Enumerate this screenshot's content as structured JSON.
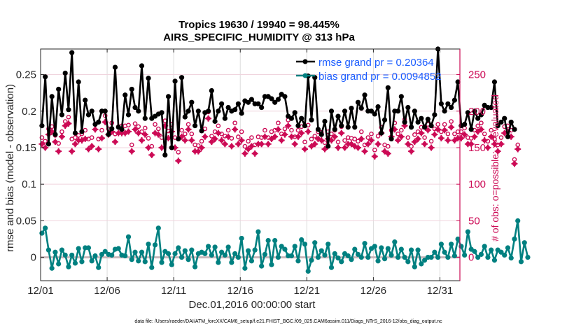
{
  "chart_data": {
    "type": "line",
    "title": "Tropics 19630 / 19940 = 98.445%",
    "subtitle": "AIRS_SPECIFIC_HUMIDITY @ 313 hPa",
    "xlabel": "Dec.01,2016 00:00:00 start",
    "ylabel": "rmse and bias (model - observation)",
    "y2label": "# of obs: o=possible; ×=evaluated",
    "footer": "data file: /Users/raeder/DAI/ATM_forcXX/CAM6_setup/f.e21.FHIST_BGC.f09_025.CAM6assim.011/Diags_NTrS_2016-12/obs_diag_output.nc",
    "xticks": [
      "12/01",
      "12/06",
      "12/11",
      "12/16",
      "12/21",
      "12/26",
      "12/31"
    ],
    "yticks": [
      "0",
      "0.05",
      "0.1",
      "0.15",
      "0.2",
      "0.25"
    ],
    "y2ticks": [
      "0",
      "50",
      "100",
      "150",
      "200",
      "250"
    ],
    "xlim_days": [
      0,
      31.5
    ],
    "ylim": [
      -0.032,
      0.285
    ],
    "y2lim": [
      -32,
      285
    ],
    "grid": true,
    "legend_position": "top-right",
    "legend": [
      {
        "label": "rmse grand pr = 0.20364",
        "color": "#000000"
      },
      {
        "label": "bias grand pr = 0.0094852",
        "color": "#008080"
      }
    ],
    "colors": {
      "rmse": "#000000",
      "bias": "#008080",
      "obs": "#cc0a55",
      "zero_line": "#c8b8bc",
      "legend_text": "#1a5cff"
    },
    "time_step_days": 0.25,
    "series": [
      {
        "name": "rmse",
        "values": [
          0.18,
          0.247,
          0.155,
          0.22,
          0.168,
          0.23,
          0.195,
          0.252,
          0.202,
          0.28,
          0.17,
          0.24,
          0.172,
          0.215,
          0.195,
          0.2,
          0.182,
          0.185,
          0.2,
          0.2,
          0.168,
          0.176,
          0.26,
          0.178,
          0.175,
          0.222,
          0.195,
          0.23,
          0.205,
          0.2,
          0.262,
          0.19,
          0.245,
          0.19,
          0.193,
          0.196,
          0.198,
          0.14,
          0.22,
          0.15,
          0.241,
          0.162,
          0.246,
          0.192,
          0.2,
          0.212,
          0.18,
          0.2,
          0.173,
          0.198,
          0.2,
          0.228,
          0.186,
          0.2,
          0.21,
          0.19,
          0.205,
          0.2,
          0.202,
          0.21,
          0.197,
          0.214,
          0.212,
          0.216,
          0.21,
          0.21,
          0.205,
          0.22,
          0.22,
          0.217,
          0.212,
          0.216,
          0.223,
          0.22,
          0.193,
          0.19,
          0.198,
          0.18,
          0.19,
          0.18,
          0.248,
          0.188,
          0.246,
          0.175,
          0.168,
          0.186,
          0.152,
          0.2,
          0.175,
          0.193,
          0.18,
          0.2,
          0.178,
          0.204,
          0.178,
          0.212,
          0.204,
          0.222,
          0.2,
          0.2,
          0.196,
          0.206,
          0.17,
          0.188,
          0.232,
          0.162,
          0.2,
          0.2,
          0.22,
          0.185,
          0.205,
          0.178,
          0.2,
          0.185,
          0.19,
          0.178,
          0.189,
          0.18,
          0.195,
          0.285,
          0.21,
          0.2,
          0.21,
          0.205,
          0.215,
          0.24,
          0.18,
          0.182,
          0.198,
          0.175,
          0.2,
          0.19,
          0.195,
          0.208,
          0.205,
          0.205,
          0.24,
          0.18,
          0.185,
          0.19,
          0.165,
          0.185,
          0.175
        ]
      },
      {
        "name": "bias",
        "values": [
          0.033,
          0.04,
          0.01,
          -0.015,
          0.007,
          -0.009,
          0.01,
          0.003,
          -0.013,
          0.003,
          -0.008,
          0.012,
          -0.006,
          0.013,
          0.013,
          -0.005,
          0.002,
          -0.014,
          0.004,
          0.008,
          0.004,
          0.003,
          0.011,
          0.012,
          0.003,
          0.002,
          0.028,
          -0.003,
          0.007,
          -0.005,
          0.007,
          -0.006,
          0.018,
          -0.014,
          0.017,
          0.04,
          -0.007,
          0.008,
          0.005,
          -0.01,
          0.005,
          0.013,
          0.0,
          0.009,
          -0.003,
          0.01,
          -0.013,
          0.005,
          0.007,
          0.005,
          0.015,
          0.003,
          0.014,
          -0.007,
          0.007,
          0.003,
          0.014,
          -0.007,
          0.005,
          0.0,
          0.026,
          -0.015,
          0.009,
          -0.005,
          0.01,
          0.035,
          -0.012,
          0.004,
          0.023,
          -0.01,
          0.023,
          0.0,
          0.015,
          0.011,
          0.002,
          0.002,
          0.015,
          -0.005,
          0.024,
          0.018,
          -0.019,
          -0.004,
          0.02,
          0.0,
          0.009,
          0.003,
          0.018,
          -0.014,
          0.005,
          -0.001,
          -0.006,
          0.005,
          0.002,
          -0.003,
          0.011,
          0.004,
          0.0,
          0.019,
          0.0,
          0.012,
          0.015,
          -0.005,
          0.013,
          -0.002,
          0.012,
          0.003,
          0.021,
          0.0,
          0.011,
          0.0,
          -0.006,
          0.01,
          -0.013,
          0.01,
          -0.009,
          -0.004,
          0.0,
          0.0,
          0.007,
          0.0,
          0.018,
          0.007,
          0.0,
          0.018,
          0.002,
          0.025,
          0.015,
          0.003,
          0.035,
          0.011,
          0.008,
          0.0,
          0.004,
          0.015,
          0.0,
          0.01,
          -0.004,
          0.01,
          0.007,
          0.003,
          0.013,
          -0.001,
          0.025,
          0.05,
          -0.006,
          0.02,
          0.0
        ]
      },
      {
        "name": "obs_possible",
        "values": [
          160,
          155,
          172,
          175,
          163,
          152,
          168,
          182,
          188,
          158,
          160,
          163,
          165,
          170,
          158,
          160,
          178,
          158,
          170,
          190,
          172,
          180,
          165,
          175,
          176,
          176,
          177,
          150,
          179,
          175,
          168,
          173,
          159,
          148,
          178,
          172,
          160,
          183,
          169,
          178,
          160,
          140,
          170,
          165,
          178,
          165,
          150,
          149,
          155,
          172,
          195,
          162,
          168,
          176,
          165,
          162,
          170,
          159,
          180,
          161,
          168,
          148,
          155,
          160,
          150,
          161,
          160,
          170,
          160,
          168,
          170,
          180,
          165,
          172,
          184,
          170,
          161,
          170,
          175,
          154,
          177,
          158,
          162,
          168,
          167,
          153,
          168,
          165,
          170,
          154,
          175,
          156,
          160,
          159,
          158,
          155,
          168,
          150,
          160,
          165,
          143,
          162,
          174,
          150,
          148,
          170,
          180,
          165,
          170,
          185,
          160,
          148,
          164,
          168,
          174,
          160,
          178,
          155,
          172,
          178,
          168,
          178,
          165,
          182,
          165,
          168,
          168,
          173,
          160,
          159,
          170,
          176,
          180,
          165,
          155,
          170,
          158,
          150,
          160,
          175,
          176,
          170,
          130,
          150
        ]
      },
      {
        "name": "obs_evaluated",
        "values": [
          155,
          150,
          168,
          172,
          158,
          145,
          165,
          180,
          183,
          145,
          155,
          160,
          160,
          162,
          148,
          152,
          175,
          148,
          163,
          185,
          168,
          172,
          158,
          170,
          170,
          170,
          172,
          145,
          175,
          170,
          160,
          168,
          150,
          140,
          170,
          168,
          150,
          180,
          163,
          172,
          150,
          132,
          165,
          160,
          175,
          160,
          145,
          145,
          150,
          165,
          190,
          158,
          162,
          170,
          160,
          155,
          165,
          152,
          175,
          155,
          160,
          142,
          148,
          152,
          142,
          155,
          155,
          165,
          155,
          162,
          165,
          175,
          160,
          168,
          180,
          165,
          155,
          165,
          170,
          148,
          172,
          152,
          155,
          162,
          160,
          148,
          162,
          160,
          165,
          150,
          170,
          150,
          155,
          155,
          152,
          150,
          162,
          145,
          155,
          160,
          138,
          155,
          170,
          145,
          142,
          165,
          175,
          160,
          165,
          180,
          155,
          145,
          158,
          162,
          170,
          155,
          174,
          150,
          168,
          175,
          163,
          174,
          160,
          178,
          160,
          163,
          163,
          168,
          155,
          155,
          165,
          172,
          175,
          160,
          150,
          165,
          155,
          145,
          155,
          170,
          172,
          165,
          128,
          148
        ]
      }
    ]
  }
}
